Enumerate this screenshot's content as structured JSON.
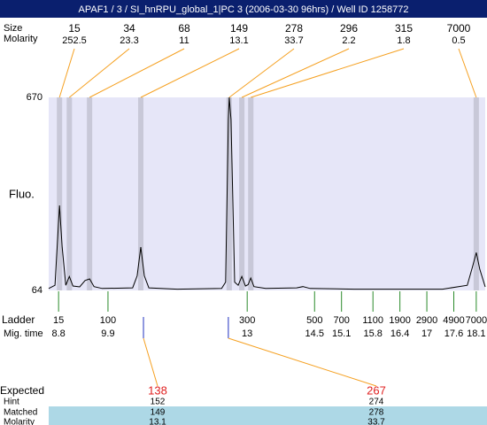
{
  "chart_data": {
    "type": "line",
    "title": "APAF1 / 3 / SI_hnRPU_global_1|PC 3 (2006-03-30 96hrs) / Well ID 1258772",
    "ylabel": "Fluo.",
    "xlim": [
      8.58,
      18.3
    ],
    "ylim": [
      64,
      670
    ],
    "yticks": [
      64,
      670
    ],
    "color": "#000000",
    "background": "#e6e6f8",
    "band_color": "#c8c8d8",
    "x": [
      8.58,
      8.72,
      8.82,
      8.88,
      8.96,
      9.04,
      9.12,
      9.27,
      9.39,
      9.49,
      9.59,
      9.77,
      10.45,
      10.55,
      10.63,
      10.71,
      10.81,
      11.44,
      12.43,
      12.52,
      12.58,
      12.6,
      12.64,
      12.72,
      12.8,
      12.88,
      12.96,
      13.02,
      13.08,
      13.15,
      13.41,
      14.1,
      14.24,
      14.4,
      15.38,
      17.35,
      17.9,
      18.02,
      18.1,
      18.18,
      18.3
    ],
    "values": [
      70,
      80,
      331,
      200,
      80,
      108,
      78,
      75,
      95,
      100,
      76,
      70,
      72,
      110,
      200,
      110,
      72,
      68,
      70,
      90,
      600,
      670,
      600,
      90,
      80,
      108,
      78,
      82,
      103,
      76,
      70,
      72,
      76,
      70,
      68,
      68,
      80,
      140,
      183,
      130,
      75
    ],
    "peaks": {
      "size_label": "Size",
      "molarity_label": "Molarity",
      "sizes": [
        15,
        34,
        68,
        149,
        278,
        296,
        315,
        7000
      ],
      "molarities": [
        252.5,
        23.3,
        11,
        13.1,
        33.7,
        2.2,
        1.8,
        0.5
      ],
      "times": [
        8.82,
        9.04,
        9.49,
        10.63,
        12.6,
        12.88,
        13.08,
        18.1
      ]
    },
    "ladder": {
      "label": "Ladder",
      "time_label": "Mig. time",
      "sizes": [
        15,
        100,
        300,
        500,
        700,
        1100,
        1900,
        2900,
        4900,
        7000
      ],
      "times": [
        8.8,
        9.9,
        13,
        14.5,
        15.1,
        15.8,
        16.4,
        17,
        17.6,
        18.1
      ]
    },
    "expected": {
      "labels": [
        "Expected",
        "Hint",
        "Matched",
        "Molarity"
      ],
      "expected": [
        138,
        267
      ],
      "hint": [
        152,
        274
      ],
      "matched": [
        149,
        278
      ],
      "molarity": [
        13.1,
        33.7
      ],
      "times": [
        10.69,
        12.58
      ]
    }
  }
}
